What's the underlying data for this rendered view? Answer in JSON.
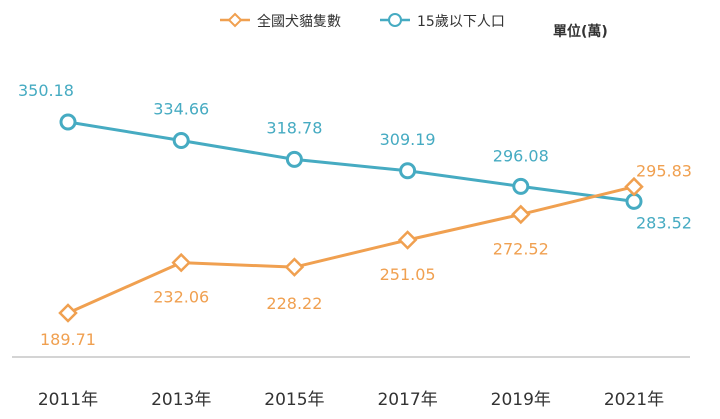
{
  "chart_data": {
    "type": "line",
    "categories": [
      "2011年",
      "2013年",
      "2015年",
      "2017年",
      "2019年",
      "2021年"
    ],
    "unit": "單位(萬)",
    "series": [
      {
        "name": "全國犬貓隻數",
        "color": "#f0a050",
        "marker": "diamond",
        "values": [
          189.71,
          232.06,
          228.22,
          251.05,
          272.52,
          295.83
        ]
      },
      {
        "name": "15歲以下人口",
        "color": "#46abc2",
        "marker": "circle",
        "values": [
          350.18,
          334.66,
          318.78,
          309.19,
          296.08,
          283.52
        ]
      }
    ],
    "ylim": [
      150,
      380
    ],
    "grid": false,
    "legend": "top"
  }
}
